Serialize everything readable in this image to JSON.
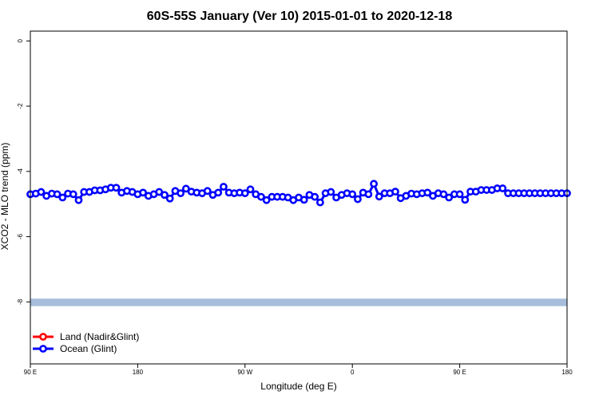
{
  "chart_data": {
    "type": "line",
    "title": "60S-55S January (Ver 10)   2015-01-01 to 2020-12-18",
    "xlabel": "Longitude (deg E)",
    "ylabel": "XCO2 - MLO trend (ppm)",
    "xlim": [
      90,
      450
    ],
    "ylim": [
      -9.9,
      0.3
    ],
    "x_ticks": [
      {
        "value": 90,
        "label": "90 E"
      },
      {
        "value": 162,
        "label": "180"
      },
      {
        "value": 234,
        "label": "90 W"
      },
      {
        "value": 306,
        "label": "0"
      },
      {
        "value": 378,
        "label": "90 E"
      },
      {
        "value": 450,
        "label": "180"
      }
    ],
    "y_ticks": [
      {
        "value": 0,
        "label": "0"
      },
      {
        "value": -2,
        "label": "-2"
      },
      {
        "value": -4,
        "label": "-4"
      },
      {
        "value": -6,
        "label": "-6"
      },
      {
        "value": -8,
        "label": "-8"
      }
    ],
    "band": {
      "from": -7.9,
      "to": -8.13,
      "color": "#a6bddb"
    },
    "legend_position": "bottom-left",
    "series": [
      {
        "name": "Land (Nadir&Glint)",
        "color": "#ff0000",
        "values": []
      },
      {
        "name": "Ocean (Glint)",
        "color": "#0000ff",
        "x": [
          90,
          93.6,
          97.2,
          100.8,
          104.4,
          108,
          111.6,
          115.2,
          118.8,
          122.4,
          126,
          129.6,
          133.2,
          136.8,
          140.4,
          144,
          147.6,
          151.2,
          154.8,
          158.4,
          162,
          165.6,
          169.2,
          172.8,
          176.4,
          180,
          183.6,
          187.2,
          190.8,
          194.4,
          198,
          201.6,
          205.2,
          208.8,
          212.4,
          216,
          219.6,
          223.2,
          226.8,
          230.4,
          234,
          237.6,
          241.2,
          244.8,
          248.4,
          252,
          255.6,
          259.2,
          262.8,
          266.4,
          270,
          273.6,
          277.2,
          280.8,
          284.4,
          288,
          291.6,
          295.2,
          298.8,
          302.4,
          306,
          309.6,
          313.2,
          316.8,
          320.4,
          324,
          327.6,
          331.2,
          334.8,
          338.4,
          342,
          345.6,
          349.2,
          352.8,
          356.4,
          360,
          363.6,
          367.2,
          370.8,
          374.4,
          378,
          381.6,
          385.2,
          388.8,
          392.4,
          396,
          399.6,
          403.2,
          406.8,
          410.4,
          414,
          417.6,
          421.2,
          424.8,
          428.4,
          432,
          435.6,
          439.2,
          442.8,
          446.4,
          450
        ],
        "values": [
          -4.7,
          -4.68,
          -4.63,
          -4.75,
          -4.68,
          -4.7,
          -4.8,
          -4.68,
          -4.7,
          -4.88,
          -4.63,
          -4.63,
          -4.58,
          -4.58,
          -4.55,
          -4.5,
          -4.5,
          -4.65,
          -4.6,
          -4.63,
          -4.7,
          -4.65,
          -4.75,
          -4.7,
          -4.63,
          -4.72,
          -4.83,
          -4.6,
          -4.67,
          -4.53,
          -4.62,
          -4.65,
          -4.67,
          -4.6,
          -4.72,
          -4.65,
          -4.47,
          -4.65,
          -4.67,
          -4.65,
          -4.67,
          -4.55,
          -4.7,
          -4.78,
          -4.88,
          -4.78,
          -4.78,
          -4.78,
          -4.8,
          -4.88,
          -4.8,
          -4.87,
          -4.72,
          -4.78,
          -4.95,
          -4.67,
          -4.63,
          -4.8,
          -4.72,
          -4.67,
          -4.7,
          -4.85,
          -4.65,
          -4.7,
          -4.38,
          -4.77,
          -4.67,
          -4.67,
          -4.62,
          -4.82,
          -4.75,
          -4.68,
          -4.7,
          -4.67,
          -4.65,
          -4.75,
          -4.67,
          -4.7,
          -4.8,
          -4.7,
          -4.7,
          -4.87,
          -4.62,
          -4.62,
          -4.57,
          -4.57,
          -4.57,
          -4.52,
          -4.52,
          -4.67,
          -4.67,
          -4.67,
          -4.67,
          -4.67,
          -4.67,
          -4.67,
          -4.67,
          -4.67,
          -4.67,
          -4.67,
          -4.67
        ]
      }
    ]
  }
}
